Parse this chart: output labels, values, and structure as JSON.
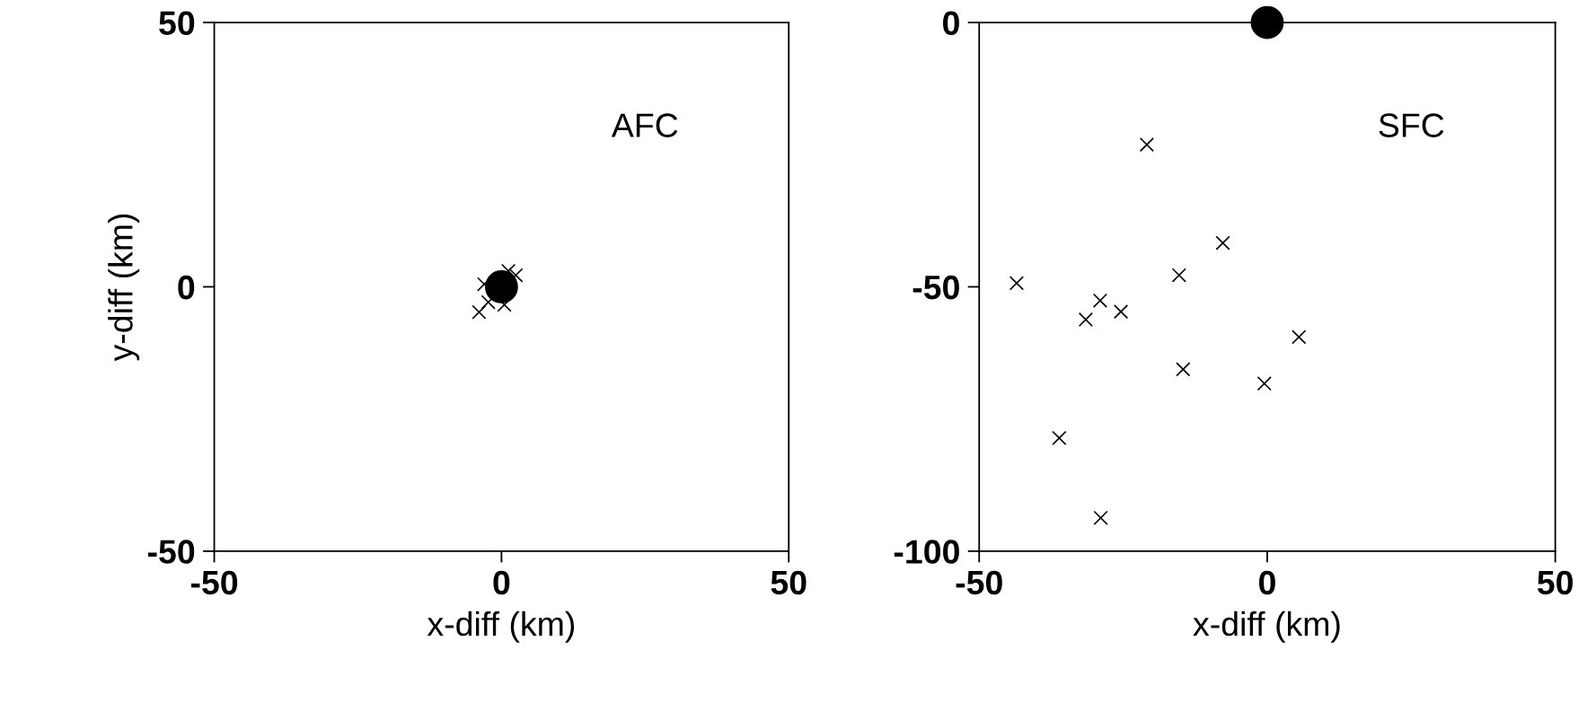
{
  "chart_data": [
    {
      "type": "scatter",
      "xlabel": "x-diff (km)",
      "ylabel": "y-diff (km)",
      "annotations": [
        "AFC"
      ],
      "xlim": [
        -50,
        50
      ],
      "ylim": [
        -50,
        50
      ],
      "xticks": [
        -50,
        0,
        50
      ],
      "yticks": [
        -50,
        0,
        50
      ],
      "grid": false,
      "legend": false,
      "series": [
        {
          "color": "#000000",
          "marker": "cross",
          "x": [
            1.2,
            2.5,
            -3,
            -2.3,
            0.5,
            -3.9
          ],
          "values": [
            3,
            2.2,
            0.5,
            -2.9,
            -3.4,
            -4.8
          ]
        },
        {
          "color": "#000000",
          "marker": "circle",
          "x": [
            0
          ],
          "values": [
            0
          ]
        }
      ]
    },
    {
      "type": "scatter",
      "xlabel": "x-diff (km)",
      "annotations": [
        "SFC"
      ],
      "xlim": [
        -50,
        50
      ],
      "ylim": [
        -100,
        0
      ],
      "xticks": [
        -50,
        0,
        50
      ],
      "yticks": [
        -100,
        -50,
        0
      ],
      "grid": false,
      "legend": false,
      "series": [
        {
          "color": "#000000",
          "marker": "cross",
          "x": [
            -20.9,
            -7.7,
            -43.5,
            -15.3,
            -29,
            -31.5,
            -25.4,
            5.5,
            -14.6,
            -0.5,
            -36.1,
            -28.9
          ],
          "values": [
            -23.1,
            -41.7,
            -49.3,
            -47.8,
            -52.6,
            -56.2,
            -54.7,
            -59.5,
            -65.6,
            -68.3,
            -78.6,
            -93.7
          ]
        },
        {
          "color": "#000000",
          "marker": "circle",
          "x": [
            0
          ],
          "values": [
            0
          ]
        }
      ]
    }
  ]
}
